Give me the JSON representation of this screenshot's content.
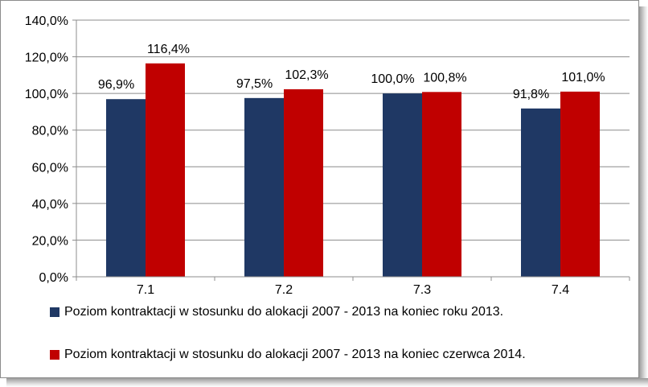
{
  "chart_data": {
    "type": "bar",
    "categories": [
      "7.1",
      "7.2",
      "7.3",
      "7.4"
    ],
    "series": [
      {
        "name": "Poziom kontraktacji w stosunku do alokacji 2007 - 2013 na koniec roku 2013.",
        "values": [
          96.9,
          97.5,
          100.0,
          91.8
        ],
        "labels": [
          "96,9%",
          "97,5%",
          "100,0%",
          "91,8%"
        ],
        "color": "#1f3864"
      },
      {
        "name": "Poziom kontraktacji w stosunku do alokacji 2007 - 2013 na koniec czerwca 2014.",
        "values": [
          116.4,
          102.3,
          100.8,
          101.0
        ],
        "labels": [
          "116,4%",
          "102,3%",
          "100,8%",
          "101,0%"
        ],
        "color": "#c00000"
      }
    ],
    "y_ticks": [
      0,
      20,
      40,
      60,
      80,
      100,
      120,
      140
    ],
    "y_tick_labels": [
      "0,0%",
      "20,0%",
      "40,0%",
      "60,0%",
      "80,0%",
      "100,0%",
      "120,0%",
      "140,0%"
    ],
    "ylim": [
      0,
      140
    ],
    "grid": "horizontal",
    "legend_position": "bottom",
    "title": "",
    "xlabel": "",
    "ylabel": ""
  }
}
